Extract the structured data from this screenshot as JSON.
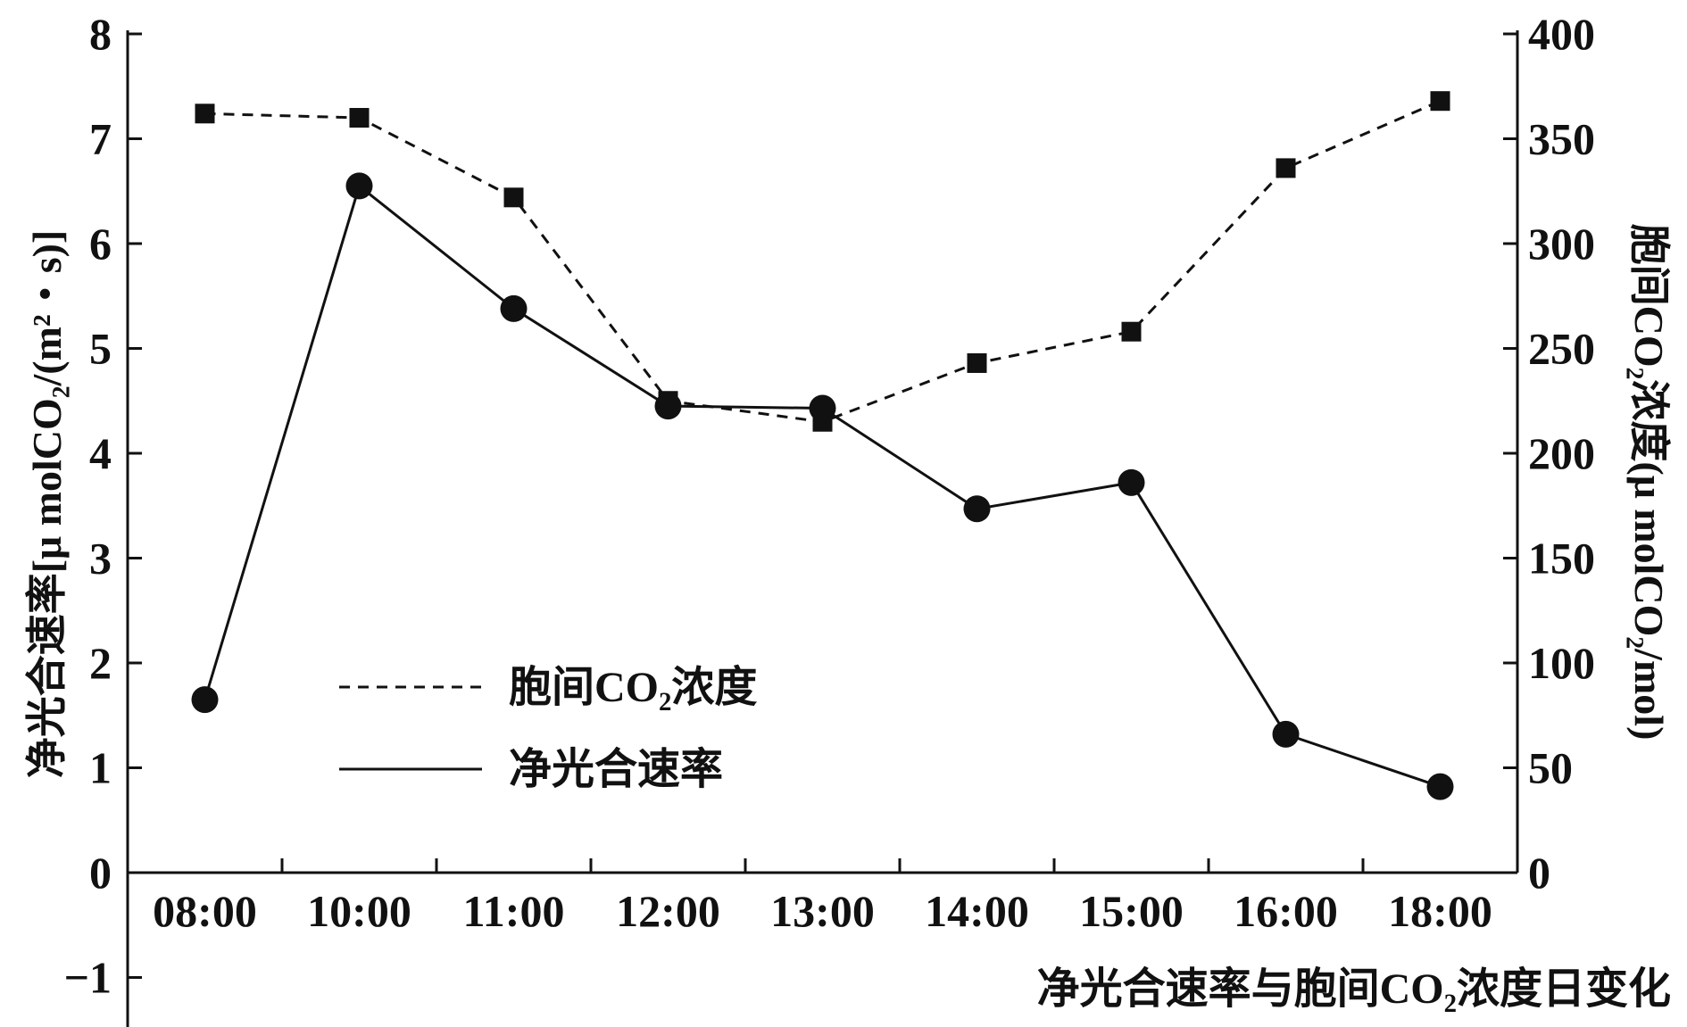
{
  "chart_data": {
    "type": "line",
    "title": "净光合速率与胞间CO₂浓度日变化",
    "categories": [
      "08:00",
      "10:00",
      "11:00",
      "12:00",
      "13:00",
      "14:00",
      "15:00",
      "16:00",
      "18:00"
    ],
    "ylabel_left": "净光合速率[μ molCO₂/(m²・s)]",
    "ylabel_right": "胞间CO₂浓度(μ molCO₂/mol)",
    "ylim_left": [
      -1,
      8
    ],
    "yticks_left": [
      -1,
      0,
      1,
      2,
      3,
      4,
      5,
      6,
      7,
      8
    ],
    "ylim_right": [
      0,
      400
    ],
    "yticks_right": [
      0,
      50,
      100,
      150,
      200,
      250,
      300,
      350,
      400
    ],
    "series": [
      {
        "name": "胞间CO₂浓度",
        "axis": "right",
        "style": "dashed",
        "marker": "square",
        "x_pos": [
          0.5,
          1.5,
          2.5,
          3.5,
          4.5,
          5.5,
          6.5,
          7.5,
          8.5
        ],
        "values": [
          362,
          360,
          322,
          225,
          215,
          243,
          258,
          336,
          368
        ]
      },
      {
        "name": "净光合速率",
        "axis": "left",
        "style": "solid",
        "marker": "circle",
        "x_pos": [
          0.5,
          1.5,
          2.5,
          3.5,
          4.5,
          5.5,
          6.5,
          7.5,
          8.5
        ],
        "values": [
          1.65,
          6.55,
          5.38,
          4.45,
          4.43,
          3.47,
          3.72,
          1.32,
          0.82
        ]
      }
    ],
    "legend": [
      "胞间CO₂浓度",
      "净光合速率"
    ],
    "legend_position": "lower-left",
    "grid": false,
    "color": "#111111"
  }
}
